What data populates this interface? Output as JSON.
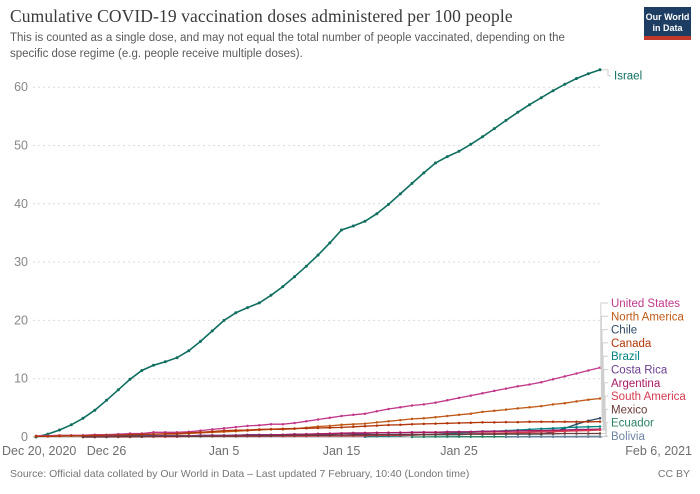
{
  "header": {
    "title": "Cumulative COVID-19 vaccination doses administered per 100 people",
    "subtitle": "This is counted as a single dose, and may not equal the total number of people vaccinated, depending on the specific dose regime (e.g. people receive multiple doses).",
    "logo": {
      "line1": "Our World",
      "line2": "in Data",
      "bg_color": "#1d3d63",
      "stripe_color": "#c0392b"
    }
  },
  "footer": {
    "source": "Source: Official data collated by Our World in Data – Last updated 7 February, 10:40 (London time)",
    "license": "CC BY"
  },
  "chart_data": {
    "type": "line",
    "title": "Cumulative COVID-19 vaccination doses administered per 100 people",
    "xlabel": "",
    "ylabel": "",
    "x_start": "Dec 20, 2020",
    "x_end": "Feb 6, 2021",
    "x_cadence": "daily",
    "x_total_days": 48,
    "x_ticks": [
      {
        "day": 0,
        "label": "Dec 20, 2020"
      },
      {
        "day": 6,
        "label": "Dec 26"
      },
      {
        "day": 16,
        "label": "Jan 5"
      },
      {
        "day": 26,
        "label": "Jan 15"
      },
      {
        "day": 36,
        "label": "Jan 25"
      },
      {
        "day": 48,
        "label": "Feb 6, 2021"
      }
    ],
    "y_ticks": [
      0,
      10,
      20,
      30,
      40,
      50,
      60
    ],
    "ylim": [
      0,
      63
    ],
    "grid": "dashed horizontal gridlines, solid zero line",
    "legend_position": "right-edge labels with gray leader lines, ordered by final value",
    "series": [
      {
        "name": "Israel",
        "color": "#0f6e5f",
        "values": [
          0,
          0.5,
          1.2,
          2.1,
          3.2,
          4.6,
          6.3,
          8.1,
          9.9,
          11.4,
          12.3,
          12.9,
          13.6,
          14.8,
          16.4,
          18.2,
          20,
          21.3,
          22.2,
          23,
          24.3,
          25.8,
          27.5,
          29.3,
          31.2,
          33.3,
          35.5,
          36.2,
          37,
          38.3,
          39.9,
          41.7,
          43.5,
          45.3,
          47,
          48.1,
          49,
          50.2,
          51.5,
          52.9,
          54.3,
          55.7,
          57,
          58.2,
          59.4,
          60.5,
          61.5,
          62.3,
          63
        ]
      },
      {
        "name": "United States",
        "color": "#c1388a",
        "values": [
          0.2,
          0.2,
          0.3,
          0.3,
          0.3,
          0.4,
          0.4,
          0.5,
          0.6,
          0.6,
          0.8,
          0.8,
          0.8,
          0.9,
          1.1,
          1.3,
          1.5,
          1.7,
          1.9,
          2,
          2.2,
          2.2,
          2.4,
          2.7,
          3,
          3.3,
          3.6,
          3.8,
          4,
          4.4,
          4.8,
          5.1,
          5.4,
          5.6,
          5.9,
          6.3,
          6.7,
          7.1,
          7.5,
          7.9,
          8.3,
          8.7,
          9,
          9.4,
          9.9,
          10.4,
          10.9,
          11.4,
          11.9
        ]
      },
      {
        "name": "North America",
        "color": "#c05917",
        "values": [
          0.1,
          0.1,
          0.2,
          0.2,
          0.2,
          0.2,
          0.3,
          0.3,
          0.4,
          0.4,
          0.5,
          0.5,
          0.5,
          0.6,
          0.7,
          0.8,
          0.9,
          1,
          1.1,
          1.2,
          1.3,
          1.3,
          1.4,
          1.6,
          1.8,
          1.9,
          2.1,
          2.2,
          2.3,
          2.5,
          2.7,
          2.9,
          3.1,
          3.2,
          3.4,
          3.6,
          3.8,
          4,
          4.3,
          4.5,
          4.7,
          4.9,
          5.1,
          5.3,
          5.6,
          5.8,
          6.1,
          6.4,
          6.6
        ]
      },
      {
        "name": "Chile",
        "color": "#2e4a63",
        "values": [
          null,
          null,
          null,
          null,
          0.1,
          0.1,
          0.1,
          0.2,
          0.2,
          0.2,
          0.2,
          0.2,
          0.2,
          0.2,
          0.2,
          0.2,
          0.2,
          0.3,
          0.3,
          0.3,
          0.3,
          0.3,
          0.3,
          0.3,
          0.3,
          0.3,
          0.3,
          0.4,
          0.4,
          0.4,
          0.4,
          0.4,
          0.4,
          0.4,
          0.4,
          0.4,
          0.4,
          0.5,
          0.5,
          0.5,
          0.5,
          0.5,
          0.5,
          0.5,
          0.8,
          1.5,
          2.2,
          2.8,
          3.2
        ]
      },
      {
        "name": "Canada",
        "color": "#b13507",
        "values": [
          0.1,
          0.1,
          0.15,
          0.2,
          0.2,
          0.25,
          0.3,
          0.35,
          0.4,
          0.45,
          0.5,
          0.55,
          0.6,
          0.7,
          0.8,
          0.95,
          1.1,
          1.15,
          1.2,
          1.3,
          1.35,
          1.4,
          1.45,
          1.5,
          1.55,
          1.6,
          1.65,
          1.75,
          1.85,
          1.95,
          2.05,
          2.1,
          2.2,
          2.25,
          2.3,
          2.35,
          2.4,
          2.45,
          2.5,
          2.5,
          2.55,
          2.55,
          2.6,
          2.6,
          2.6,
          2.6,
          2.6,
          2.6,
          2.65
        ]
      },
      {
        "name": "Brazil",
        "color": "#00847e",
        "values": [
          null,
          null,
          null,
          null,
          null,
          null,
          null,
          null,
          null,
          null,
          null,
          null,
          null,
          null,
          null,
          null,
          null,
          null,
          null,
          null,
          null,
          null,
          null,
          null,
          null,
          null,
          null,
          null,
          0.05,
          0.1,
          0.15,
          0.2,
          0.3,
          0.4,
          0.5,
          0.6,
          0.7,
          0.8,
          0.9,
          1,
          1.1,
          1.2,
          1.3,
          1.4,
          1.5,
          1.6,
          1.7,
          1.75,
          1.8
        ]
      },
      {
        "name": "Costa Rica",
        "color": "#6d3e91",
        "values": [
          null,
          null,
          null,
          null,
          0,
          0,
          0.1,
          0.1,
          0.1,
          0.1,
          0.2,
          0.2,
          0.2,
          0.2,
          0.3,
          0.3,
          0.3,
          0.3,
          0.4,
          0.4,
          0.4,
          0.4,
          0.5,
          0.5,
          0.5,
          0.5,
          0.6,
          0.6,
          0.6,
          0.7,
          0.7,
          0.7,
          0.8,
          0.8,
          0.8,
          0.9,
          0.9,
          0.9,
          1,
          1,
          1,
          1.1,
          1.1,
          1.1,
          1.2,
          1.2,
          1.3,
          1.3,
          1.35
        ]
      },
      {
        "name": "Argentina",
        "color": "#ad1a63",
        "values": [
          null,
          null,
          null,
          null,
          null,
          null,
          null,
          null,
          null,
          0.05,
          0.1,
          0.1,
          0.1,
          0.15,
          0.15,
          0.2,
          0.2,
          0.25,
          0.3,
          0.3,
          0.35,
          0.4,
          0.45,
          0.5,
          0.55,
          0.6,
          0.65,
          0.7,
          0.7,
          0.72,
          0.75,
          0.77,
          0.78,
          0.8,
          0.8,
          0.82,
          0.85,
          0.88,
          0.9,
          0.95,
          1,
          1.02,
          1.05,
          1.08,
          1.1,
          1.15,
          1.2,
          1.25,
          1.3
        ]
      },
      {
        "name": "South America",
        "color": "#d73c50",
        "values": [
          null,
          null,
          null,
          null,
          0,
          0,
          0,
          0,
          0,
          0.05,
          0.05,
          0.05,
          0.05,
          0.1,
          0.1,
          0.1,
          0.1,
          0.1,
          0.1,
          0.1,
          0.15,
          0.15,
          0.15,
          0.15,
          0.2,
          0.2,
          0.2,
          0.2,
          0.2,
          0.25,
          0.3,
          0.3,
          0.35,
          0.4,
          0.45,
          0.5,
          0.5,
          0.55,
          0.6,
          0.65,
          0.7,
          0.75,
          0.8,
          0.85,
          0.9,
          1,
          1.05,
          1.1,
          1.2
        ]
      },
      {
        "name": "Mexico",
        "color": "#6b3a38",
        "values": [
          null,
          null,
          null,
          null,
          0,
          0,
          0,
          0.05,
          0.05,
          0.05,
          0.1,
          0.1,
          0.1,
          0.1,
          0.1,
          0.15,
          0.15,
          0.15,
          0.2,
          0.2,
          0.2,
          0.25,
          0.25,
          0.3,
          0.3,
          0.3,
          0.35,
          0.35,
          0.35,
          0.4,
          0.4,
          0.4,
          0.45,
          0.45,
          0.45,
          0.5,
          0.5,
          0.5,
          0.5,
          0.5,
          0.55,
          0.55,
          0.55,
          0.55,
          0.55,
          0.6,
          0.6,
          0.6,
          0.6
        ]
      },
      {
        "name": "Ecuador",
        "color": "#2c8465",
        "values": [
          null,
          null,
          null,
          null,
          null,
          null,
          null,
          null,
          null,
          null,
          null,
          null,
          null,
          null,
          null,
          null,
          null,
          null,
          null,
          null,
          null,
          null,
          null,
          null,
          null,
          null,
          null,
          null,
          null,
          null,
          null,
          null,
          0,
          0.02,
          0.03,
          0.04,
          0.05,
          0.05,
          0.06,
          0.06,
          0.07,
          0.07,
          0.08,
          0.08,
          0.08,
          0.09,
          0.09,
          0.1,
          0.1
        ]
      },
      {
        "name": "Bolivia",
        "color": "#6e82a4",
        "values": [
          null,
          null,
          null,
          null,
          null,
          null,
          null,
          null,
          null,
          null,
          null,
          null,
          null,
          null,
          null,
          null,
          null,
          null,
          null,
          null,
          null,
          null,
          null,
          null,
          null,
          null,
          null,
          null,
          null,
          null,
          null,
          null,
          null,
          null,
          null,
          null,
          null,
          null,
          null,
          null,
          0,
          0.01,
          0.02,
          0.03,
          0.04,
          0.04,
          0.05,
          0.05,
          0.06
        ]
      }
    ]
  }
}
